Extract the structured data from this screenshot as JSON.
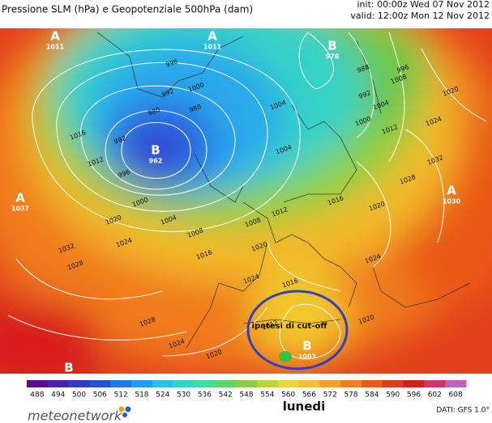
{
  "header": {
    "title": "Pressione SLM (hPa) e Geopotenziale 500hPa (dam)",
    "init": "init: 00:00z Wed 07 Nov 2012",
    "valid": "valid: 12:00z Mon 12 Nov 2012"
  },
  "centers": [
    {
      "letter": "A",
      "value": 1011
    },
    {
      "letter": "A",
      "value": 1011
    },
    {
      "letter": "B",
      "value": 978
    },
    {
      "letter": "B",
      "value": 962
    },
    {
      "letter": "A",
      "value": 1037
    },
    {
      "letter": "A",
      "value": 1030
    },
    {
      "letter": "B",
      "value": 1003
    },
    {
      "letter": "B"
    }
  ],
  "isobar_labels": [
    996,
    992,
    980,
    988,
    1000,
    992,
    996,
    1000,
    1004,
    1008,
    1012,
    1016,
    1020,
    1024,
    1028,
    1032,
    1016,
    1020,
    1024,
    1004,
    1004,
    1012,
    1008,
    988,
    992,
    996,
    1000,
    1004,
    1008,
    1012,
    1016,
    1020,
    1024,
    1028,
    1032,
    1020,
    1024,
    1020,
    1016,
    1012,
    1028,
    1024,
    1020
  ],
  "annotation": "ipotesi di cut-off",
  "colorbar": {
    "ticks": [
      488,
      494,
      500,
      506,
      512,
      518,
      524,
      530,
      536,
      542,
      548,
      554,
      560,
      566,
      572,
      578,
      584,
      590,
      596,
      602,
      608
    ],
    "colors": [
      "#5a0a8c",
      "#4b1fb0",
      "#3236d0",
      "#2050e0",
      "#1f78f0",
      "#1fa0f0",
      "#22c4e8",
      "#2ad8c8",
      "#3ce09a",
      "#5cd864",
      "#8ad03e",
      "#bcd630",
      "#e8d830",
      "#f6c02a",
      "#f4a022",
      "#f0801c",
      "#ea5a18",
      "#e03a16",
      "#d81c1c",
      "#d8306a",
      "#c060c0"
    ]
  },
  "day": "lunedi",
  "brand": "meteonetwork",
  "source": "DATI: GFS 1.0°"
}
